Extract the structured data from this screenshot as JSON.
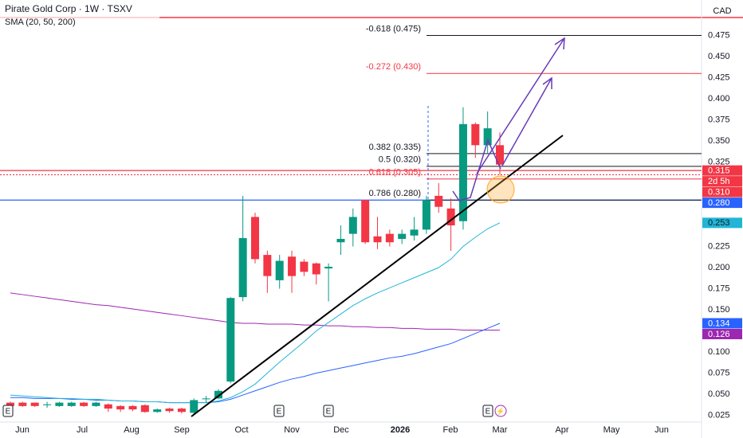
{
  "header": {
    "title": "Pirate Gold Corp · 1W · TSXV",
    "indicator": "SMA (20, 50, 200)",
    "currency": "CAD"
  },
  "chart_data": {
    "type": "candlestick",
    "categories": [
      null,
      null,
      null,
      null,
      null,
      null,
      null,
      null,
      null,
      null,
      null,
      null,
      null,
      null,
      null,
      null,
      null,
      null,
      null,
      null,
      null,
      null,
      null,
      null,
      null,
      null,
      null,
      null,
      null,
      null,
      null,
      null,
      null,
      null,
      null,
      null,
      null,
      null,
      null,
      null,
      null
    ],
    "open": [
      0.04,
      0.04,
      0.04,
      0.037,
      0.036,
      0.036,
      0.04,
      0.036,
      0.038,
      0.036,
      0.036,
      0.037,
      0.029,
      0.033,
      0.033,
      0.028,
      0.044,
      0.045,
      0.065,
      0.165,
      0.26,
      0.215,
      0.185,
      0.213,
      0.207,
      0.205,
      0.199,
      0.23,
      0.24,
      0.28,
      0.237,
      0.24,
      0.234,
      0.238,
      0.245,
      0.285,
      0.27,
      0.255,
      0.37,
      0.345,
      0.345
    ],
    "high": [
      0.041,
      0.041,
      0.04,
      0.041,
      0.041,
      0.041,
      0.041,
      0.041,
      0.039,
      0.037,
      0.037,
      0.038,
      0.033,
      0.034,
      0.034,
      0.045,
      0.048,
      0.056,
      0.165,
      0.285,
      0.265,
      0.22,
      0.215,
      0.22,
      0.21,
      0.206,
      0.205,
      0.25,
      0.27,
      0.28,
      0.26,
      0.245,
      0.245,
      0.26,
      0.285,
      0.3,
      0.282,
      0.39,
      0.372,
      0.385,
      0.36
    ],
    "low": [
      0.035,
      0.035,
      0.035,
      0.034,
      0.035,
      0.035,
      0.035,
      0.035,
      0.029,
      0.029,
      0.03,
      0.028,
      0.028,
      0.028,
      0.027,
      0.025,
      0.04,
      0.044,
      0.063,
      0.16,
      0.205,
      0.17,
      0.175,
      0.17,
      0.19,
      0.18,
      0.16,
      0.215,
      0.225,
      0.228,
      0.222,
      0.225,
      0.228,
      0.232,
      0.24,
      0.265,
      0.22,
      0.245,
      0.33,
      0.335,
      0.31
    ],
    "close": [
      0.036,
      0.036,
      0.036,
      0.038,
      0.04,
      0.04,
      0.036,
      0.04,
      0.033,
      0.032,
      0.032,
      0.029,
      0.032,
      0.03,
      0.029,
      0.043,
      0.045,
      0.054,
      0.164,
      0.235,
      0.21,
      0.19,
      0.208,
      0.19,
      0.195,
      0.192,
      0.201,
      0.234,
      0.26,
      0.23,
      0.23,
      0.23,
      0.24,
      0.245,
      0.28,
      0.272,
      0.25,
      0.37,
      0.345,
      0.365,
      0.322
    ],
    "up_color": "#089981",
    "down_color": "#f23645",
    "lines": [
      {
        "color": "#9c27b0",
        "values": [
          0.17,
          0.168,
          0.166,
          0.164,
          0.162,
          0.16,
          0.158,
          0.156,
          0.155,
          0.153,
          0.151,
          0.149,
          0.147,
          0.145,
          0.143,
          0.141,
          0.139,
          0.137,
          0.135,
          0.134,
          0.134,
          0.133,
          0.133,
          0.133,
          0.132,
          0.132,
          0.131,
          0.131,
          0.13,
          0.13,
          0.129,
          0.129,
          0.128,
          0.128,
          0.127,
          0.127,
          0.127,
          0.126,
          0.126,
          0.126,
          0.126
        ]
      },
      {
        "color": "#2962ff",
        "values": [
          0.046,
          0.046,
          0.045,
          0.045,
          0.045,
          0.044,
          0.044,
          0.043,
          0.043,
          0.042,
          0.042,
          0.041,
          0.041,
          0.04,
          0.04,
          0.04,
          0.04,
          0.041,
          0.044,
          0.049,
          0.054,
          0.059,
          0.064,
          0.068,
          0.071,
          0.075,
          0.078,
          0.081,
          0.084,
          0.087,
          0.09,
          0.093,
          0.095,
          0.098,
          0.102,
          0.106,
          0.11,
          0.116,
          0.122,
          0.128,
          0.134
        ]
      },
      {
        "color": "#22b5d6",
        "values": [
          0.049,
          0.048,
          0.047,
          0.046,
          0.045,
          0.045,
          0.044,
          0.044,
          0.043,
          0.042,
          0.042,
          0.041,
          0.041,
          0.04,
          0.04,
          0.04,
          0.04,
          0.042,
          0.046,
          0.053,
          0.062,
          0.075,
          0.088,
          0.1,
          0.112,
          0.125,
          0.135,
          0.145,
          0.155,
          0.163,
          0.17,
          0.176,
          0.182,
          0.188,
          0.194,
          0.2,
          0.21,
          0.225,
          0.236,
          0.246,
          0.253
        ]
      }
    ],
    "ylim": [
      0.017,
      0.517
    ],
    "yticks": [
      0.475,
      {
        "value": 0.45,
        "label": "0.450"
      },
      0.425,
      {
        "value": 0.4,
        "label": "0.400"
      },
      0.375,
      {
        "value": 0.35,
        "label": "0.350"
      },
      0.325,
      0.225,
      {
        "value": 0.2,
        "label": "0.200"
      },
      0.175,
      {
        "value": 0.15,
        "label": "0.150"
      },
      {
        "value": 0.1,
        "label": "0.100"
      },
      0.075,
      {
        "value": 0.05,
        "label": "0.050"
      },
      0.025
    ],
    "x_labels": [
      "Jun",
      "Jul",
      "Aug",
      "Sep",
      "Oct",
      "Nov",
      "Dec",
      "2026",
      "Feb",
      "Mar",
      "Apr",
      "May",
      "Jun"
    ],
    "fib_levels": [
      {
        "label": "-0.618 (0.475)",
        "value": 0.475,
        "color": "#131722"
      },
      {
        "label": "-0.272 (0.430)",
        "value": 0.43,
        "color": "#f23645"
      },
      {
        "label": "0.382 (0.335)",
        "value": 0.335,
        "color": "#131722"
      },
      {
        "label": "0.5 (0.320)",
        "value": 0.32,
        "color": "#131722"
      },
      {
        "label": "0.618 (0.305)",
        "value": 0.305,
        "color": "#f23645"
      },
      {
        "label": "0.786 (0.280)",
        "value": 0.28,
        "color": "#131722"
      }
    ],
    "price_lines": [
      {
        "value": 0.315,
        "color": "#f23645"
      },
      {
        "value": 0.31,
        "color": "#f23645"
      },
      {
        "value": 0.28,
        "color": "#2962ff"
      }
    ],
    "countdown": "2d 5h",
    "price_labels": [
      {
        "value": 0.315,
        "label": "0.315",
        "color": "#f23645"
      },
      {
        "value": 0.31,
        "label": "0.310",
        "color": "#f23645"
      },
      {
        "value": 0.28,
        "label": "0.280",
        "color": "#2962ff"
      },
      {
        "value": 0.253,
        "label": "0.253",
        "color": "#22b5d6"
      },
      {
        "value": 0.134,
        "label": "0.134",
        "color": "#2962ff"
      },
      {
        "value": 0.126,
        "label": "0.126",
        "color": "#9c27b0"
      }
    ],
    "event_markers": [
      "E",
      "E",
      "E",
      "E"
    ]
  }
}
